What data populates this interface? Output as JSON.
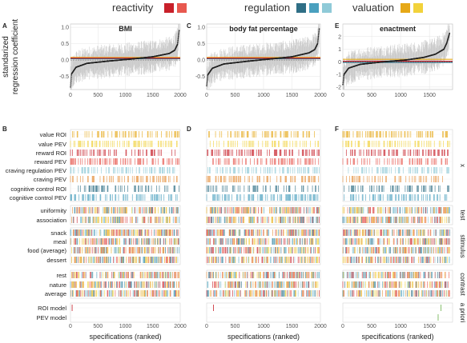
{
  "legend": {
    "groups": [
      {
        "label": "reactivity",
        "colors": [
          "#c8202a",
          "#e8584f"
        ]
      },
      {
        "label": "regulation",
        "colors": [
          "#2f6f86",
          "#4aa0bf",
          "#8fcad8"
        ]
      },
      {
        "label": "valuation",
        "colors": [
          "#e6a817",
          "#f2d23b"
        ]
      }
    ]
  },
  "panel_letters": [
    "A",
    "C",
    "E",
    "B",
    "D",
    "F"
  ],
  "colors": {
    "point": "#222222",
    "ci": "#c8c8c8",
    "zero_line": "#666666",
    "hlines": [
      "#e6a817",
      "#2f6f86",
      "#c8202a"
    ]
  },
  "x_axis_label": "specifications (ranked)",
  "y_axis_label": "standarized\nregression coefficient",
  "row_labels": [
    "value ROI",
    "value PEV",
    "reward ROI",
    "reward PEV",
    "craving regulation PEV",
    "craving PEV",
    "cognitive control ROI",
    "cognitive control PEV",
    "uniformity",
    "association",
    "snack",
    "meal",
    "food (average)",
    "dessert",
    "rest",
    "nature",
    "average",
    "ROI model",
    "PEV model"
  ],
  "row_colors": [
    "#e6a817",
    "#f2d23b",
    "#c8202a",
    "#e8584f",
    "#8fcad8",
    "#e6903c",
    "#2f6f86",
    "#4aa0bf",
    "mixed",
    "mixed",
    "mixed",
    "mixed",
    "mixed",
    "mixed",
    "mixed",
    "mixed",
    "mixed",
    "#c8202a",
    "#2f6f86"
  ],
  "group_labels": [
    "x",
    "test",
    "stimulus",
    "contrast",
    "a priori"
  ],
  "chart_data": [
    {
      "type": "scatter",
      "panel": "A",
      "title": "BMI",
      "xlabel": "specifications (ranked)",
      "ylabel": "standarized regression coefficient",
      "xlim": [
        0,
        2000
      ],
      "ylim": [
        -0.9,
        1.1
      ],
      "xticks": [
        0,
        500,
        1000,
        1500,
        2000
      ],
      "yticks": [
        -0.5,
        0.0,
        0.5,
        1.0
      ],
      "ytick_labels": [
        "-0.5",
        "0.0",
        "0.5",
        "1.0"
      ],
      "n_specs": 1980,
      "estimate_curve": [
        [
          0,
          -0.82
        ],
        [
          20,
          -0.42
        ],
        [
          100,
          -0.22
        ],
        [
          300,
          -0.1
        ],
        [
          700,
          -0.03
        ],
        [
          1100,
          0.03
        ],
        [
          1500,
          0.1
        ],
        [
          1800,
          0.2
        ],
        [
          1900,
          0.3
        ],
        [
          1950,
          0.48
        ],
        [
          1980,
          0.9
        ]
      ],
      "hlines": [
        0.08,
        0.04,
        0.06
      ],
      "grid": true
    },
    {
      "type": "scatter",
      "panel": "C",
      "title": "body fat percentage",
      "xlabel": "specifications (ranked)",
      "ylabel": "",
      "xlim": [
        0,
        2000
      ],
      "ylim": [
        -0.9,
        1.1
      ],
      "xticks": [
        0,
        500,
        1000,
        1500,
        2000
      ],
      "yticks": [
        -0.5,
        0.0,
        0.5,
        1.0
      ],
      "ytick_labels": [
        "-0.5",
        "0.0",
        "0.5",
        "1.0"
      ],
      "n_specs": 1980,
      "estimate_curve": [
        [
          0,
          -0.78
        ],
        [
          20,
          -0.45
        ],
        [
          100,
          -0.25
        ],
        [
          300,
          -0.12
        ],
        [
          700,
          -0.04
        ],
        [
          1100,
          0.03
        ],
        [
          1500,
          0.1
        ],
        [
          1800,
          0.22
        ],
        [
          1900,
          0.32
        ],
        [
          1950,
          0.5
        ],
        [
          1980,
          0.95
        ]
      ],
      "hlines": [
        0.08,
        0.04,
        0.06
      ],
      "grid": true
    },
    {
      "type": "scatter",
      "panel": "E",
      "title": "enactment",
      "xlabel": "specifications (ranked)",
      "ylabel": "",
      "xlim": [
        0,
        1900
      ],
      "ylim": [
        -2.2,
        3.0
      ],
      "xticks": [
        0,
        500,
        1000,
        1500
      ],
      "yticks": [
        -2,
        -1,
        0,
        1,
        2
      ],
      "ytick_labels": [
        "-2",
        "-1",
        "0",
        "1",
        "2"
      ],
      "n_specs": 1850,
      "estimate_curve": [
        [
          0,
          -1.8
        ],
        [
          20,
          -1.0
        ],
        [
          100,
          -0.5
        ],
        [
          300,
          -0.2
        ],
        [
          700,
          0.0
        ],
        [
          1100,
          0.15
        ],
        [
          1400,
          0.35
        ],
        [
          1600,
          0.6
        ],
        [
          1750,
          1.0
        ],
        [
          1800,
          1.5
        ],
        [
          1850,
          2.3
        ]
      ],
      "hlines": [
        0.2,
        -0.05,
        0.05
      ],
      "grid": true
    }
  ]
}
